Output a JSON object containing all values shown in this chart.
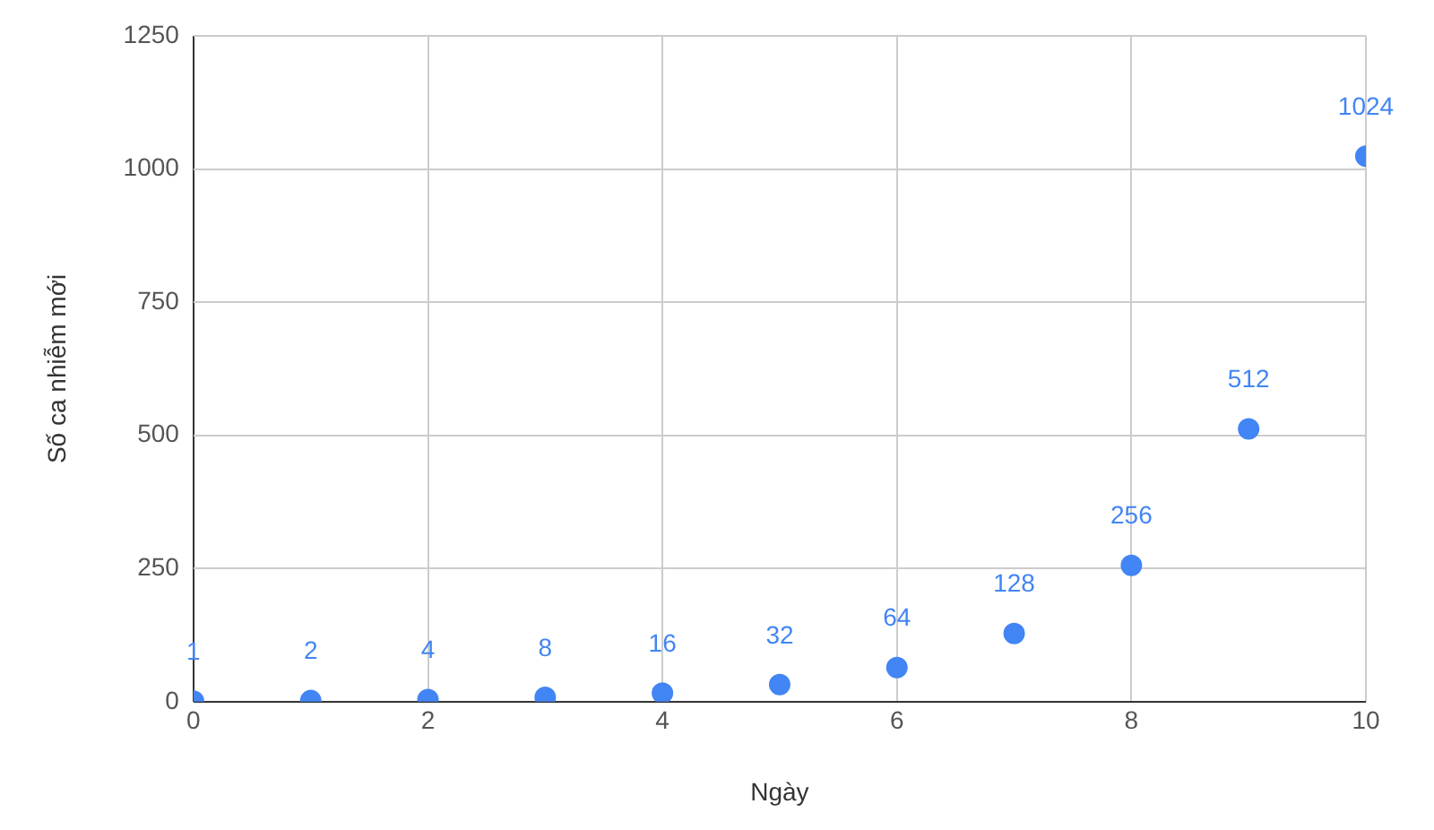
{
  "chart_data": {
    "type": "scatter",
    "xlabel": "Ngày",
    "ylabel": "Số ca nhiễm mới",
    "x": [
      0,
      1,
      2,
      3,
      4,
      5,
      6,
      7,
      8,
      9,
      10
    ],
    "series": [
      {
        "color": "#4285f4",
        "values": [
          1,
          2,
          4,
          8,
          16,
          32,
          64,
          128,
          256,
          512,
          1024
        ]
      }
    ],
    "xlim": [
      0,
      10
    ],
    "xticks": [
      0,
      2,
      4,
      6,
      8,
      10
    ],
    "ylim": [
      0,
      1250
    ],
    "yticks": [
      0,
      250,
      500,
      750,
      1000,
      1250
    ],
    "grid": true,
    "legend": false,
    "marker": "circle",
    "data_labels": true
  }
}
